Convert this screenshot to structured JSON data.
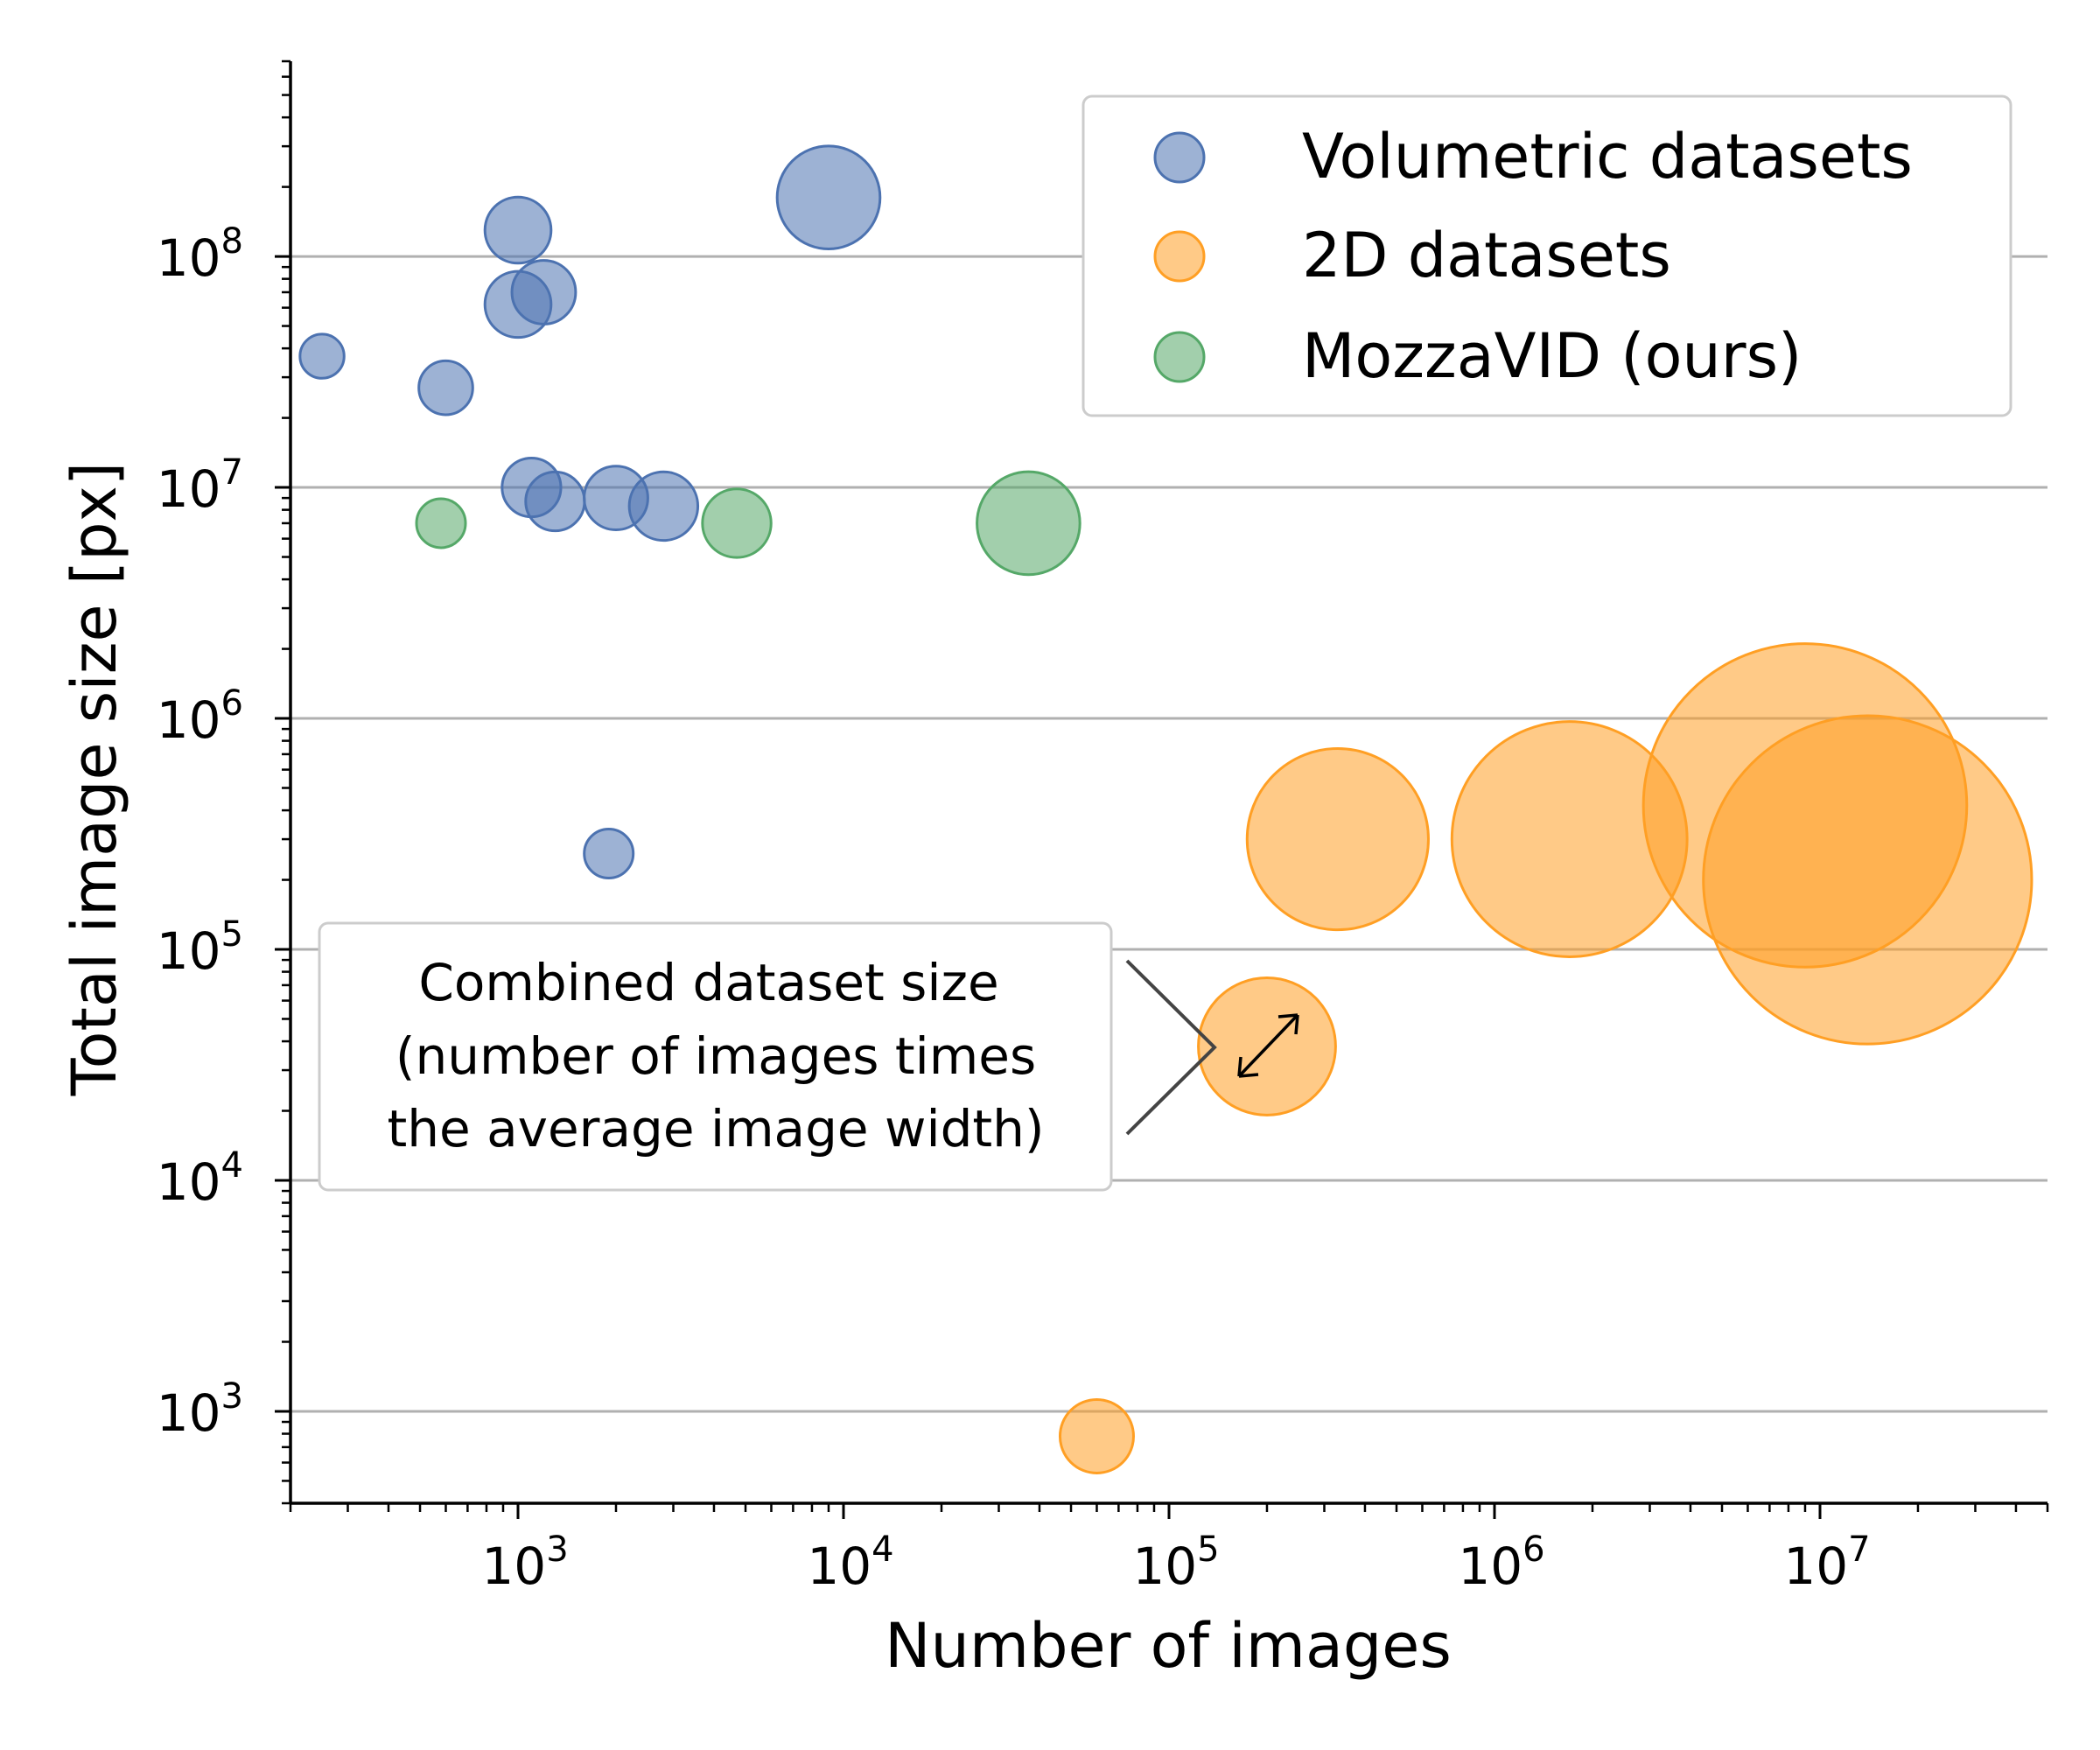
{
  "chart_data": {
    "type": "scatter",
    "xlabel": "Number of images",
    "ylabel": "Total image size [px]",
    "x_scale": "log",
    "y_scale": "log",
    "xlim": [
      200,
      50000000
    ],
    "ylim": [
      400,
      700000000
    ],
    "x_ticks": [
      {
        "base": "10",
        "exp": "3",
        "value": 1000
      },
      {
        "base": "10",
        "exp": "4",
        "value": 10000
      },
      {
        "base": "10",
        "exp": "5",
        "value": 100000
      },
      {
        "base": "10",
        "exp": "6",
        "value": 1000000
      },
      {
        "base": "10",
        "exp": "7",
        "value": 10000000
      }
    ],
    "y_ticks": [
      {
        "base": "10",
        "exp": "3",
        "value": 1000
      },
      {
        "base": "10",
        "exp": "4",
        "value": 10000
      },
      {
        "base": "10",
        "exp": "5",
        "value": 100000
      },
      {
        "base": "10",
        "exp": "6",
        "value": 1000000
      },
      {
        "base": "10",
        "exp": "7",
        "value": 10000000
      },
      {
        "base": "10",
        "exp": "8",
        "value": 100000000
      }
    ],
    "grid": "horizontal major lines",
    "legend_position": "top-right",
    "marker_size_meaning": "combined dataset size",
    "series": [
      {
        "name": "Volumetric datasets",
        "color": "#4c72b0",
        "points": [
          {
            "x": 250,
            "y": 37000000,
            "s": 0.9
          },
          {
            "x": 600,
            "y": 27000000,
            "s": 1.1
          },
          {
            "x": 1000,
            "y": 130000000,
            "s": 1.35
          },
          {
            "x": 1000,
            "y": 62000000,
            "s": 1.35
          },
          {
            "x": 1200,
            "y": 70000000,
            "s": 1.3
          },
          {
            "x": 1100,
            "y": 10000000,
            "s": 1.2
          },
          {
            "x": 1300,
            "y": 8700000,
            "s": 1.2
          },
          {
            "x": 2000,
            "y": 9000000,
            "s": 1.3
          },
          {
            "x": 2800,
            "y": 8300000,
            "s": 1.4
          },
          {
            "x": 9000,
            "y": 180000000,
            "s": 2.1
          },
          {
            "x": 1900,
            "y": 260000,
            "s": 1.0
          }
        ]
      },
      {
        "name": "2D datasets",
        "color": "#ff9f24",
        "points": [
          {
            "x": 60000,
            "y": 780,
            "s": 1.5
          },
          {
            "x": 200000,
            "y": 38000,
            "s": 2.8
          },
          {
            "x": 330000,
            "y": 300000,
            "s": 3.7
          },
          {
            "x": 1700000,
            "y": 300000,
            "s": 4.8
          },
          {
            "x": 9000000,
            "y": 420000,
            "s": 6.6
          },
          {
            "x": 14000000,
            "y": 200000,
            "s": 6.7
          }
        ]
      },
      {
        "name": "MozzaVID (ours)",
        "color": "#55a868",
        "points": [
          {
            "x": 580,
            "y": 7000000,
            "s": 1.0
          },
          {
            "x": 4700,
            "y": 7000000,
            "s": 1.4
          },
          {
            "x": 37000,
            "y": 7000000,
            "s": 2.1
          }
        ]
      }
    ],
    "annotation": {
      "lines": [
        "Combined dataset size",
        "(number of images times",
        "the average image width)"
      ]
    }
  }
}
